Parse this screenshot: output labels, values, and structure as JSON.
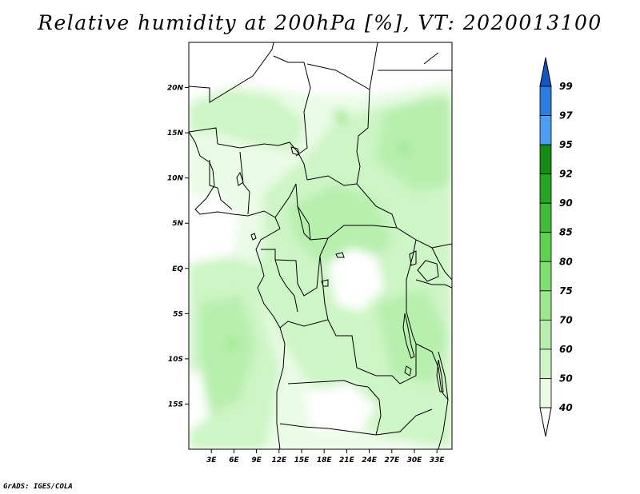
{
  "title": "Relative humidity at 200hPa [%], VT: 2020013100",
  "credit": "GrADS: IGES/COLA",
  "map": {
    "lon_range": [
      0,
      35
    ],
    "lat_range": [
      -20,
      25
    ],
    "lat_ticks": [
      "20N",
      "15N",
      "10N",
      "5N",
      "EQ",
      "5S",
      "10S",
      "15S"
    ],
    "lat_values": [
      20,
      15,
      10,
      5,
      0,
      -5,
      -10,
      -15
    ],
    "lon_ticks": [
      "3E",
      "6E",
      "9E",
      "12E",
      "15E",
      "18E",
      "21E",
      "24E",
      "27E",
      "30E",
      "33E"
    ],
    "lon_values": [
      3,
      6,
      9,
      12,
      15,
      18,
      21,
      24,
      27,
      30,
      33
    ],
    "fill_colors": {
      "40-50": "#eafbe6",
      "50-60": "#cdf5c5",
      "60-70": "#b7efad",
      "70-75": "#9be88e",
      "75-80": "#7fdf70",
      "80-85": "#5fd350",
      "85-90": "#3fbd36",
      "90-92": "#24a621",
      "92-95": "#128d12",
      "95-97": "#4c9ef5",
      "97-99": "#2a7de3",
      "99+": "#1456c8"
    }
  },
  "colorbar": {
    "labels": [
      "99",
      "97",
      "95",
      "92",
      "90",
      "85",
      "80",
      "75",
      "70",
      "60",
      "50",
      "40"
    ],
    "colors": [
      "#1456c8",
      "#2a7de3",
      "#4c9ef5",
      "#128d12",
      "#24a621",
      "#3fbd36",
      "#5fd350",
      "#7fdf70",
      "#9be88e",
      "#b7efad",
      "#cdf5c5",
      "#eafbe6",
      "#ffffff"
    ]
  }
}
